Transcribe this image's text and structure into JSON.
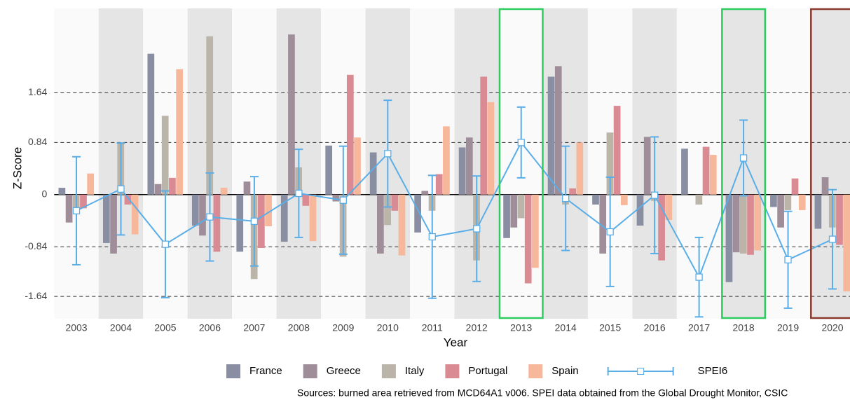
{
  "chart_data": {
    "type": "bar",
    "x_label": "Year",
    "y_label": "Z-Score",
    "source": "Sources: burned area retrieved from MCD64A1 v006. SPEI data obtained from the Global Drought Monitor, CSIC",
    "categories": [
      "2003",
      "2004",
      "2005",
      "2006",
      "2007",
      "2008",
      "2009",
      "2010",
      "2011",
      "2012",
      "2013",
      "2014",
      "2015",
      "2016",
      "2017",
      "2018",
      "2019",
      "2020"
    ],
    "ylim": [
      -2.0,
      3.0
    ],
    "yticks": [
      -1.64,
      -0.84,
      0,
      0.84,
      1.64
    ],
    "grid": true,
    "series": [
      {
        "name": "France",
        "color": "#8a8ea3",
        "values": [
          0.11,
          -0.78,
          2.27,
          -0.5,
          -0.92,
          -0.76,
          0.79,
          0.68,
          -0.61,
          0.76,
          -0.7,
          1.9,
          -0.16,
          -0.5,
          0.74,
          -1.41,
          -0.2,
          -0.55
        ]
      },
      {
        "name": "Greece",
        "color": "#9f8e99",
        "values": [
          -0.45,
          -0.95,
          0.17,
          -0.66,
          0.21,
          2.58,
          -0.11,
          -0.95,
          0.06,
          0.92,
          -0.53,
          2.07,
          -0.95,
          0.93,
          0,
          -0.93,
          -0.53,
          0.28
        ]
      },
      {
        "name": "Italy",
        "color": "#bab4a9",
        "values": [
          -0.25,
          0.84,
          1.27,
          2.55,
          -1.36,
          0.44,
          -1.0,
          -0.49,
          -0.26,
          -1.06,
          -0.38,
          -0.16,
          1.0,
          -0.1,
          -0.16,
          -0.95,
          -0.25,
          -0.53
        ]
      },
      {
        "name": "Portugal",
        "color": "#d98a93",
        "values": [
          -0.22,
          -0.16,
          0.27,
          -0.92,
          -0.86,
          -0.18,
          1.93,
          -0.26,
          0.33,
          1.9,
          -1.43,
          0.1,
          1.43,
          -1.06,
          0.77,
          -0.97,
          0.26,
          -0.81
        ]
      },
      {
        "name": "Spain",
        "color": "#f7b79b",
        "values": [
          0.34,
          -0.64,
          2.02,
          0.11,
          -0.51,
          -0.75,
          0.92,
          -0.98,
          1.1,
          1.49,
          -1.18,
          0.84,
          -0.17,
          -0.41,
          0.64,
          -0.9,
          -0.25,
          -1.56
        ]
      },
      {
        "name": "SPEI6",
        "type": "line",
        "color": "#5aaee8",
        "values": [
          -0.26,
          0.09,
          -0.8,
          -0.36,
          -0.43,
          0.02,
          -0.09,
          0.66,
          -0.68,
          -0.55,
          0.84,
          -0.06,
          -0.6,
          -0.01,
          -1.33,
          0.59,
          -1.05,
          -0.72
        ],
        "errors": [
          0.87,
          0.74,
          0.86,
          0.71,
          0.72,
          0.71,
          0.87,
          0.86,
          0.99,
          0.85,
          0.57,
          0.84,
          0.88,
          0.94,
          0.64,
          0.61,
          0.78,
          0.8
        ]
      }
    ],
    "highlights": [
      {
        "category": "2013",
        "color": "#2ecc5e"
      },
      {
        "category": "2018",
        "color": "#2ecc5e"
      },
      {
        "category": "2020",
        "color": "#8b3a2e"
      }
    ]
  }
}
